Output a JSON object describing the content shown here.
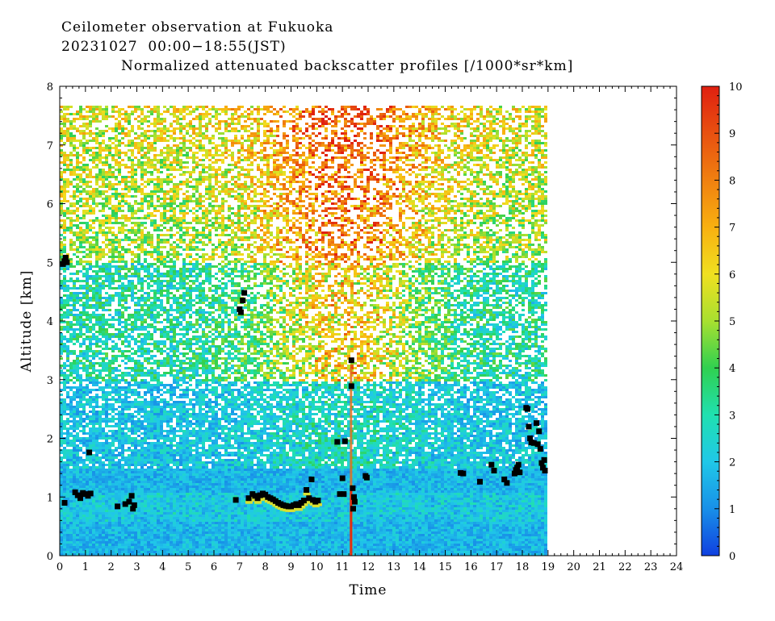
{
  "chart_data": {
    "type": "heatmap",
    "title": "Ceilometer observation at Fukuoka",
    "subtitle": "20231027  00:00−18:55(JST)",
    "colorbar_title": "Normalized attenuated backscatter profiles [/1000*sr*km]",
    "xlabel": "Time",
    "ylabel": "Altitude [km]",
    "xlim": [
      0,
      24
    ],
    "ylim": [
      0,
      8
    ],
    "data_end_time": 18.92,
    "data_top_altitude": 7.67,
    "x_ticks": [
      "0",
      "1",
      "2",
      "3",
      "4",
      "5",
      "6",
      "7",
      "8",
      "9",
      "10",
      "11",
      "12",
      "13",
      "14",
      "15",
      "16",
      "17",
      "18",
      "19",
      "20",
      "21",
      "22",
      "23",
      "24"
    ],
    "y_ticks": [
      "0",
      "1",
      "2",
      "3",
      "4",
      "5",
      "6",
      "7",
      "8"
    ],
    "colorbar": {
      "range": [
        0,
        10
      ],
      "ticks": [
        "0",
        "1",
        "2",
        "3",
        "4",
        "5",
        "6",
        "7",
        "8",
        "9",
        "10"
      ],
      "colors": [
        "#1040e0",
        "#1890e8",
        "#20c8e8",
        "#20e0b0",
        "#30d050",
        "#a8e030",
        "#f0e020",
        "#f8b010",
        "#f08010",
        "#e85010",
        "#e02010"
      ]
    },
    "cloud_base_color": "#000000",
    "cloud_base_points": [
      [
        0.13,
        4.97
      ],
      [
        0.18,
        5.02
      ],
      [
        0.23,
        5.08
      ],
      [
        0.28,
        5.0
      ],
      [
        0.19,
        0.9
      ],
      [
        0.6,
        1.08
      ],
      [
        0.7,
        1.03
      ],
      [
        0.8,
        0.98
      ],
      [
        0.9,
        1.07
      ],
      [
        1.0,
        1.05
      ],
      [
        1.1,
        1.02
      ],
      [
        1.2,
        1.06
      ],
      [
        1.15,
        1.76
      ],
      [
        2.25,
        0.84
      ],
      [
        2.55,
        0.88
      ],
      [
        2.7,
        0.92
      ],
      [
        2.8,
        1.02
      ],
      [
        2.85,
        0.8
      ],
      [
        2.9,
        0.86
      ],
      [
        6.85,
        0.95
      ],
      [
        7.0,
        4.2
      ],
      [
        7.05,
        4.15
      ],
      [
        7.12,
        4.35
      ],
      [
        7.18,
        4.48
      ],
      [
        7.35,
        0.98
      ],
      [
        7.5,
        1.05
      ],
      [
        7.6,
        1.02
      ],
      [
        7.7,
        0.98
      ],
      [
        7.8,
        1.03
      ],
      [
        7.9,
        1.06
      ],
      [
        8.0,
        1.04
      ],
      [
        8.1,
        1.0
      ],
      [
        8.2,
        0.98
      ],
      [
        8.3,
        0.96
      ],
      [
        8.4,
        0.93
      ],
      [
        8.5,
        0.9
      ],
      [
        8.6,
        0.88
      ],
      [
        8.7,
        0.86
      ],
      [
        8.8,
        0.85
      ],
      [
        8.9,
        0.84
      ],
      [
        9.0,
        0.84
      ],
      [
        9.1,
        0.86
      ],
      [
        9.2,
        0.88
      ],
      [
        9.3,
        0.86
      ],
      [
        9.4,
        0.9
      ],
      [
        9.5,
        0.94
      ],
      [
        9.6,
        1.12
      ],
      [
        9.7,
        0.98
      ],
      [
        9.8,
        1.3
      ],
      [
        9.85,
        0.95
      ],
      [
        9.95,
        0.92
      ],
      [
        10.05,
        0.94
      ],
      [
        10.8,
        1.94
      ],
      [
        10.9,
        1.05
      ],
      [
        11.05,
        1.05
      ],
      [
        11.1,
        1.95
      ],
      [
        11.0,
        1.32
      ],
      [
        11.35,
        3.33
      ],
      [
        11.35,
        2.89
      ],
      [
        11.4,
        1.15
      ],
      [
        11.45,
        1.0
      ],
      [
        11.48,
        0.92
      ],
      [
        11.42,
        0.8
      ],
      [
        11.9,
        1.36
      ],
      [
        11.95,
        1.33
      ],
      [
        15.6,
        1.41
      ],
      [
        15.7,
        1.4
      ],
      [
        16.35,
        1.26
      ],
      [
        16.8,
        1.55
      ],
      [
        16.9,
        1.45
      ],
      [
        17.3,
        1.3
      ],
      [
        17.4,
        1.24
      ],
      [
        17.7,
        1.4
      ],
      [
        17.75,
        1.46
      ],
      [
        17.8,
        1.5
      ],
      [
        17.85,
        1.55
      ],
      [
        17.9,
        1.42
      ],
      [
        18.15,
        2.52
      ],
      [
        18.2,
        2.5
      ],
      [
        18.25,
        2.2
      ],
      [
        18.3,
        2.0
      ],
      [
        18.35,
        1.93
      ],
      [
        18.45,
        1.92
      ],
      [
        18.55,
        2.26
      ],
      [
        18.6,
        1.9
      ],
      [
        18.65,
        2.12
      ],
      [
        18.7,
        1.82
      ],
      [
        18.75,
        1.58
      ],
      [
        18.8,
        1.5
      ],
      [
        18.85,
        1.63
      ],
      [
        18.88,
        1.45
      ]
    ]
  }
}
